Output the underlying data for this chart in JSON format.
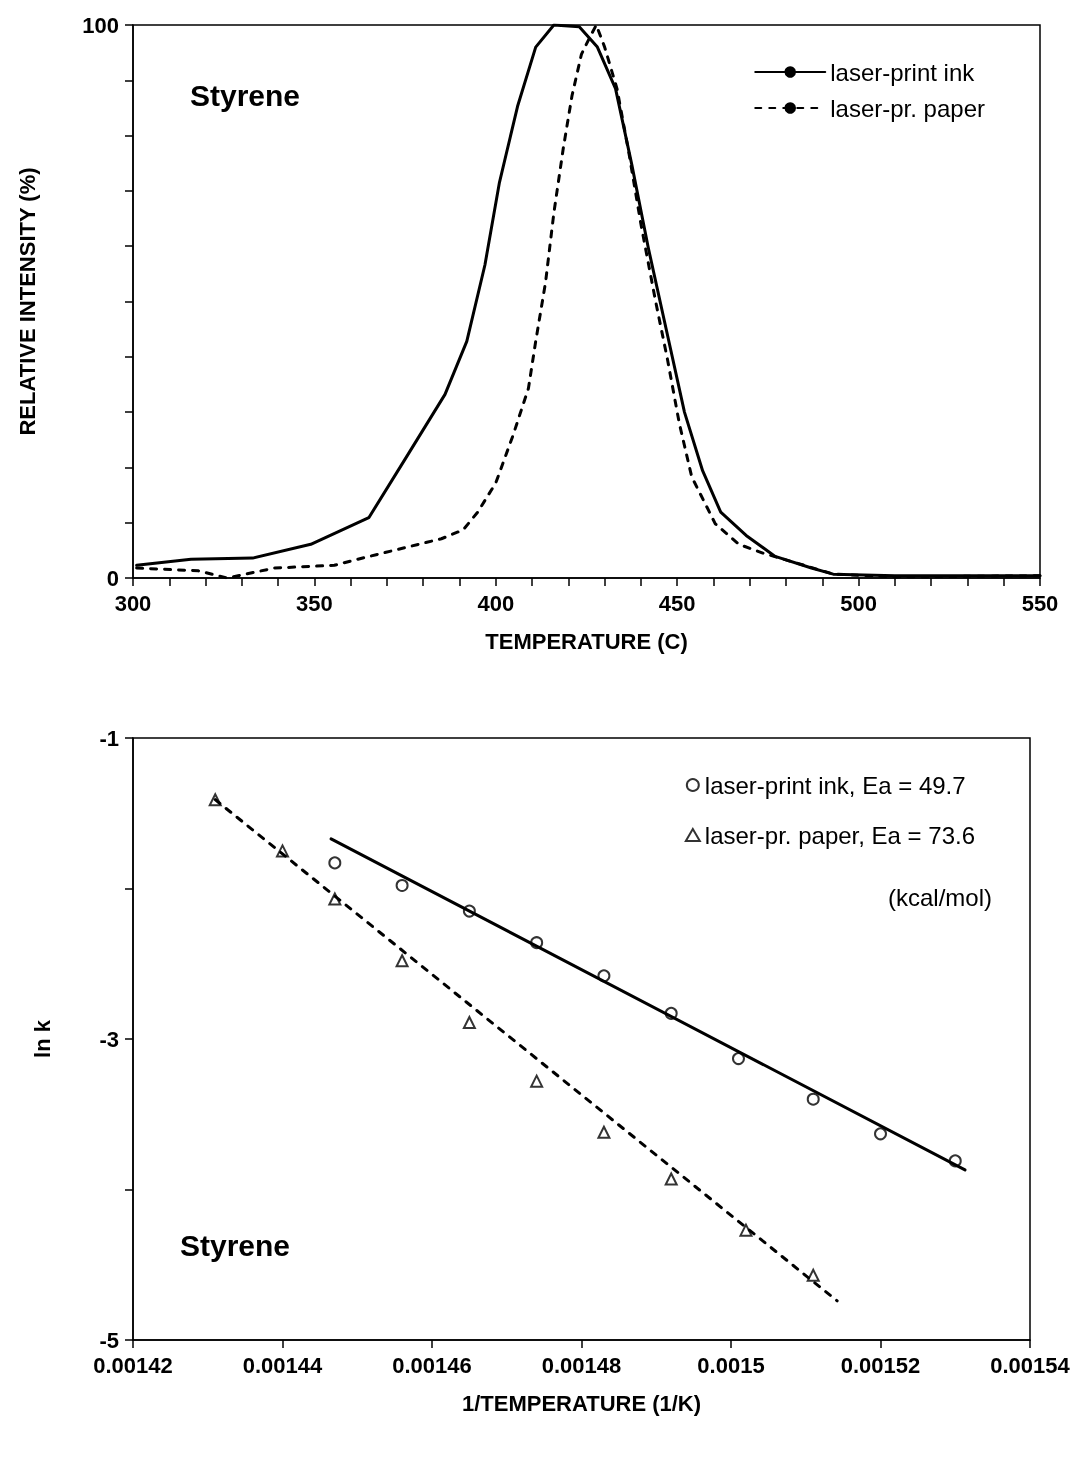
{
  "chart_data": [
    {
      "type": "line",
      "xlabel": "TEMPERATURE (C)",
      "ylabel": "RELATIVE INTENSITY (%)",
      "annotations": [
        "Styrene"
      ],
      "xlim": [
        300,
        550
      ],
      "xticks": [
        300,
        {
          "value": 310,
          "label": null
        },
        {
          "value": 320,
          "label": null
        },
        {
          "value": 330,
          "label": null
        },
        {
          "value": 340,
          "label": null
        },
        350,
        {
          "value": 360,
          "label": null
        },
        {
          "value": 370,
          "label": null
        },
        {
          "value": 380,
          "label": null
        },
        {
          "value": 390,
          "label": null
        },
        400,
        {
          "value": 410,
          "label": null
        },
        {
          "value": 420,
          "label": null
        },
        {
          "value": 430,
          "label": null
        },
        {
          "value": 440,
          "label": null
        },
        450,
        {
          "value": 460,
          "label": null
        },
        {
          "value": 470,
          "label": null
        },
        {
          "value": 480,
          "label": null
        },
        {
          "value": 490,
          "label": null
        },
        500,
        {
          "value": 510,
          "label": null
        },
        {
          "value": 520,
          "label": null
        },
        {
          "value": 530,
          "label": null
        },
        {
          "value": 540,
          "label": null
        },
        550
      ],
      "ylim": [
        0,
        100
      ],
      "yticks": [
        0,
        {
          "value": 10,
          "label": null
        },
        {
          "value": 20,
          "label": null
        },
        {
          "value": 30,
          "label": null
        },
        {
          "value": 40,
          "label": null
        },
        {
          "value": 50,
          "label": null
        },
        {
          "value": 60,
          "label": null
        },
        {
          "value": 70,
          "label": null
        },
        {
          "value": 80,
          "label": null
        },
        {
          "value": 90,
          "label": null
        },
        100
      ],
      "legend": "top right",
      "marker": "none",
      "series": [
        {
          "name": "laser-print ink",
          "color": "#000000",
          "line_style": "solid",
          "x": [
            301,
            316,
            333,
            349,
            365,
            375,
            386,
            392,
            397,
            401,
            406,
            411,
            416,
            423,
            428,
            433,
            437.5,
            442,
            447,
            452,
            457,
            462,
            469,
            477,
            487,
            493,
            510,
            550
          ],
          "values": [
            2.3,
            3.4,
            3.6,
            6.1,
            10.9,
            21.5,
            33.2,
            42.8,
            56.6,
            71.5,
            85.3,
            96,
            100,
            99.7,
            96,
            88.5,
            74.7,
            59.8,
            44.9,
            30,
            19.4,
            11.9,
            7.7,
            3.9,
            1.8,
            0.7,
            0.4,
            0.4
          ]
        },
        {
          "name": "laser-pr. paper",
          "color": "#000000",
          "line_style": "dashed",
          "x": [
            301,
            318,
            326,
            339,
            355.5,
            362,
            375,
            385,
            391,
            395,
            400,
            404.7,
            409,
            411,
            413.7,
            416,
            418.6,
            421,
            423.6,
            426,
            427.7,
            430,
            433.4,
            436.7,
            440,
            444,
            447.3,
            450.6,
            454,
            460.5,
            467,
            473.6,
            485,
            493,
            510,
            550
          ],
          "values": [
            1.8,
            1.3,
            0,
            1.8,
            2.3,
            3.4,
            5.5,
            7.1,
            8.7,
            11.9,
            17.2,
            25.7,
            34.3,
            42.8,
            53.4,
            66,
            77.7,
            87.2,
            94.7,
            97.9,
            100,
            96,
            88.5,
            76.8,
            64,
            50.2,
            39.6,
            27.9,
            18.3,
            9.8,
            6.1,
            4.5,
            2.3,
            0.7,
            0.2,
            0.4
          ]
        }
      ]
    },
    {
      "type": "scatter",
      "xlabel": "1/TEMPERATURE (1/K)",
      "ylabel": "ln k",
      "annotations": [
        "(kcal/mol)",
        "Styrene"
      ],
      "xlim": [
        0.00142,
        0.00154
      ],
      "xticks": [
        0.00142,
        0.00144,
        0.00146,
        0.00148,
        0.0015,
        0.00152,
        0.00154
      ],
      "ylim": [
        -5,
        -1
      ],
      "yticks": [
        -5,
        {
          "value": -4,
          "label": null
        },
        -3,
        {
          "value": -2,
          "label": null
        },
        -1
      ],
      "legend": "top right",
      "series": [
        {
          "name": "laser-print ink, Ea = 49.7",
          "color": "#000000",
          "marker": "circle",
          "x": [
            0.001447,
            0.001456,
            0.001465,
            0.001474,
            0.001483,
            0.001492,
            0.001501,
            0.001511,
            0.00152,
            0.00153
          ],
          "values": [
            -1.83,
            -1.98,
            -2.15,
            -2.36,
            -2.58,
            -2.83,
            -3.13,
            -3.4,
            -3.63,
            -3.81
          ]
        },
        {
          "name": "laser-pr. paper, Ea = 73.6",
          "color": "#000000",
          "marker": "triangle",
          "x": [
            0.001431,
            0.00144,
            0.001447,
            0.001456,
            0.001465,
            0.001474,
            0.001483,
            0.001492,
            0.001502,
            0.001511
          ],
          "values": [
            -1.41,
            -1.75,
            -2.07,
            -2.48,
            -2.89,
            -3.28,
            -3.62,
            -3.93,
            -4.27,
            -4.57
          ]
        },
        {
          "type": "line",
          "color": "#000000",
          "line_style": "solid",
          "marker": "none",
          "x": [
            0.0014465,
            0.0015313
          ],
          "values": [
            -1.67,
            -3.87
          ]
        },
        {
          "type": "line",
          "color": "#000000",
          "line_style": "dashed",
          "marker": "none",
          "x": [
            0.001431,
            0.0015142
          ],
          "values": [
            -1.41,
            -4.74
          ]
        }
      ]
    }
  ]
}
